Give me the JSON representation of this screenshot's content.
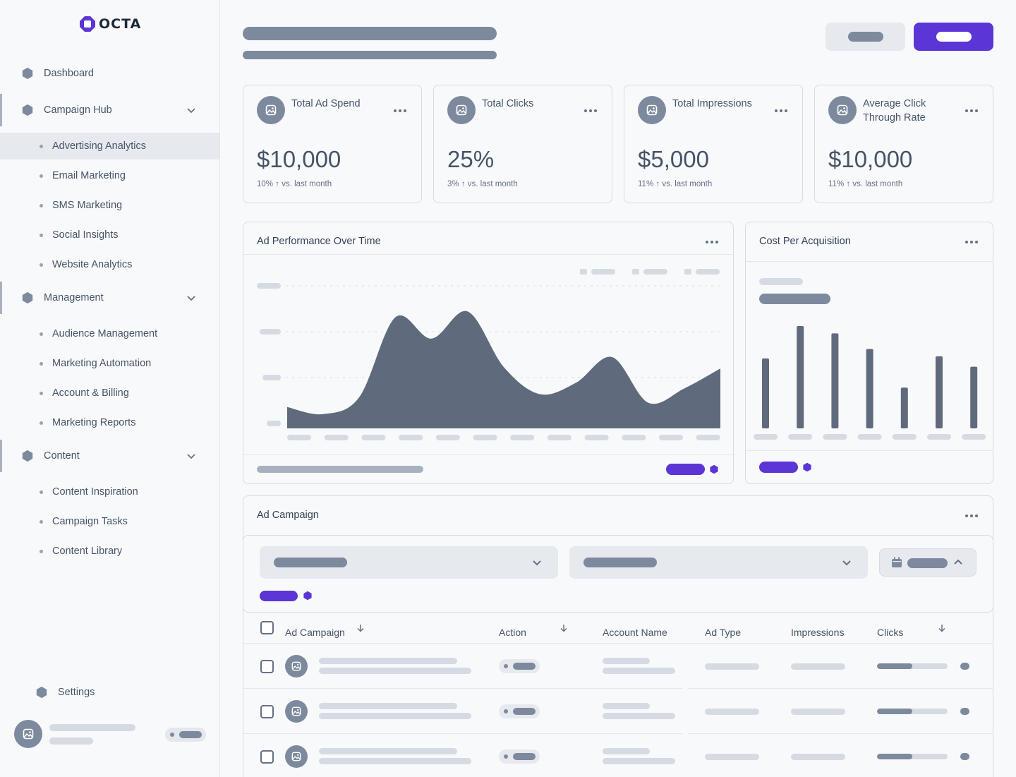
{
  "app": {
    "brand": "OCTA"
  },
  "sidebar": {
    "dashboard": "Dashboard",
    "groups": [
      {
        "label": "Campaign Hub",
        "items": [
          "Advertising Analytics",
          "Email Marketing",
          "SMS Marketing",
          "Social Insights",
          "Website Analytics"
        ],
        "active": "Advertising Analytics"
      },
      {
        "label": "Management",
        "items": [
          "Audience Management",
          "Marketing Automation",
          "Account & Billing",
          "Marketing Reports"
        ]
      },
      {
        "label": "Content",
        "items": [
          "Content Inspiration",
          "Campaign Tasks",
          "Content Library"
        ]
      }
    ],
    "settings": "Settings"
  },
  "stats": [
    {
      "title": "Total Ad Spend",
      "value": "$10,000",
      "change_pct": "10%",
      "change_text": "vs. last month"
    },
    {
      "title": "Total Clicks",
      "value": "25%",
      "change_pct": "3%",
      "change_text": "vs. last month"
    },
    {
      "title": "Total Impressions",
      "value": "$5,000",
      "change_pct": "11%",
      "change_text": "vs. last month"
    },
    {
      "title": "Average Click Through Rate",
      "value": "$10,000",
      "change_pct": "11%",
      "change_text": "vs. last month"
    }
  ],
  "panels": {
    "performance_title": "Ad Performance Over Time",
    "cpa_title": "Cost Per Acquisition",
    "campaign_title": "Ad Campaign"
  },
  "table": {
    "headers": [
      "Ad Campaign",
      "Action",
      "Account Name",
      "Ad Type",
      "Impressions",
      "Clicks"
    ],
    "row_count": 3,
    "clicks_progress": [
      0.5,
      0.5,
      0.5
    ]
  },
  "chart_data": [
    {
      "type": "area",
      "x": [
        0,
        1,
        2,
        3,
        4,
        5,
        6,
        7,
        8,
        9,
        10,
        11,
        12
      ],
      "values": [
        15,
        10,
        22,
        78,
        63,
        82,
        43,
        24,
        32,
        50,
        18,
        28,
        42
      ],
      "ylim": [
        0,
        100
      ],
      "grid": true,
      "color": "#5f6b7c"
    },
    {
      "type": "bar",
      "values": [
        67,
        98,
        91,
        76,
        39,
        69,
        59
      ],
      "ylim": [
        0,
        100
      ],
      "color": "#5f6b7c"
    }
  ],
  "colors": {
    "accent": "#5b35d5",
    "skeleton_dark": "#7d8a9e",
    "skeleton_light": "#d6dbe3",
    "chart": "#5f6b7c"
  }
}
